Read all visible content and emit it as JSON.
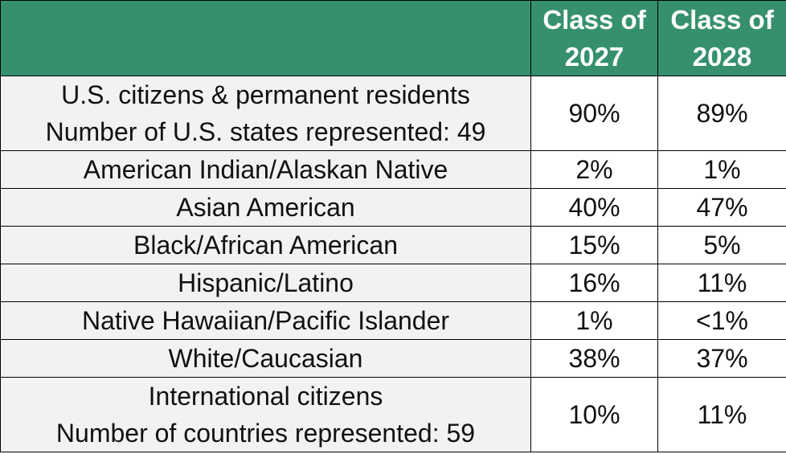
{
  "header": {
    "columns": [
      "",
      "Class of 2027",
      "Class of 2028"
    ],
    "col2_line1": "Class of",
    "col2_line2": "2027",
    "col3_line1": "Class of",
    "col3_line2": "2028"
  },
  "rows": [
    {
      "label_line1": "U.S. citizens & permanent residents",
      "label_line2": "Number of U.S. states represented: 49",
      "class_2027": "90%",
      "class_2028": "89%"
    },
    {
      "label": "American Indian/Alaskan Native",
      "class_2027": "2%",
      "class_2028": "1%"
    },
    {
      "label": "Asian American",
      "class_2027": "40%",
      "class_2028": "47%"
    },
    {
      "label": "Black/African American",
      "class_2027": "15%",
      "class_2028": "5%"
    },
    {
      "label": "Hispanic/Latino",
      "class_2027": "16%",
      "class_2028": "11%"
    },
    {
      "label": "Native Hawaiian/Pacific Islander",
      "class_2027": "1%",
      "class_2028": "<1%"
    },
    {
      "label": "White/Caucasian",
      "class_2027": "38%",
      "class_2028": "37%"
    },
    {
      "label_line1": "International citizens",
      "label_line2": "Number of countries represented: 59",
      "class_2027": "10%",
      "class_2028": "11%"
    }
  ],
  "colors": {
    "header_bg": "#36906e",
    "header_text": "#ffffff",
    "label_bg": "#f2f2f2",
    "value_bg": "#ffffff",
    "border": "#000000"
  }
}
